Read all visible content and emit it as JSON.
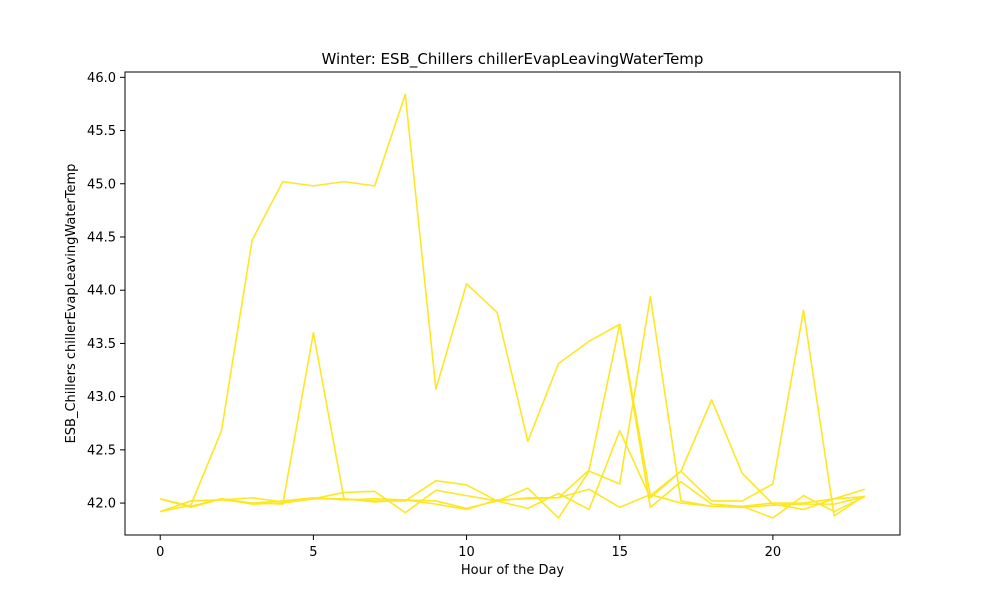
{
  "chart_data": {
    "type": "line",
    "title": "Winter: ESB_Chillers chillerEvapLeavingWaterTemp",
    "xlabel": "Hour of the Day",
    "ylabel": "ESB_Chillers chillerEvapLeavingWaterTemp",
    "xlim": [
      -1.15,
      24.15
    ],
    "ylim": [
      41.7,
      46.05
    ],
    "xticks": [
      0,
      5,
      10,
      15,
      20
    ],
    "xtick_labels": [
      "0",
      "5",
      "10",
      "15",
      "20"
    ],
    "yticks": [
      42.0,
      42.5,
      43.0,
      43.5,
      44.0,
      44.5,
      45.0,
      45.5,
      46.0
    ],
    "ytick_labels": [
      "42.0",
      "42.5",
      "43.0",
      "43.5",
      "44.0",
      "44.5",
      "45.0",
      "45.5",
      "46.0"
    ],
    "grid": false,
    "line_color": "#fde725",
    "series": [
      {
        "x": [
          0,
          1,
          2,
          3,
          4,
          5,
          6,
          7,
          8,
          9,
          10,
          11,
          12,
          13,
          14,
          15,
          16,
          17,
          18,
          19,
          20,
          21,
          22,
          23
        ],
        "values": [
          41.92,
          41.98,
          42.68,
          44.47,
          45.02,
          44.98,
          45.02,
          44.98,
          45.84,
          43.07,
          44.06,
          43.79,
          42.58,
          43.31,
          43.52,
          43.68,
          42.07,
          42.3,
          42.02,
          42.02,
          42.18,
          43.81,
          41.88,
          42.07
        ]
      },
      {
        "x": [
          0,
          1,
          2,
          3,
          4,
          5,
          6,
          7,
          8,
          9,
          10,
          11,
          12,
          13,
          14,
          15,
          16,
          17,
          18,
          19,
          20,
          21,
          22,
          23
        ],
        "values": [
          42.04,
          41.96,
          42.04,
          42.0,
          41.99,
          43.6,
          42.04,
          42.02,
          42.02,
          42.21,
          42.17,
          42.02,
          42.05,
          42.05,
          42.31,
          43.68,
          41.96,
          42.2,
          41.99,
          41.97,
          41.86,
          42.07,
          41.92,
          42.06
        ]
      },
      {
        "x": [
          1,
          2,
          3,
          4,
          5,
          6,
          7,
          8,
          9,
          10,
          11,
          12,
          13,
          14,
          15,
          16,
          17,
          18,
          19,
          20,
          21,
          22,
          23
        ],
        "values": [
          42.02,
          42.03,
          42.05,
          42.01,
          42.04,
          42.04,
          42.01,
          42.03,
          42.02,
          41.95,
          42.02,
          42.14,
          41.86,
          42.3,
          42.18,
          43.94,
          42.02,
          41.97,
          41.97,
          42.0,
          42.0,
          42.04,
          42.06
        ]
      },
      {
        "x": [
          0,
          1,
          2,
          3,
          4,
          5,
          6,
          7,
          8,
          9,
          10,
          11,
          12,
          13,
          14,
          15,
          16,
          17,
          18,
          19,
          20,
          21,
          22,
          23
        ],
        "values": [
          42.04,
          41.97,
          42.04,
          41.99,
          42.0,
          42.04,
          42.1,
          42.11,
          41.91,
          42.12,
          42.07,
          42.02,
          41.95,
          42.09,
          41.94,
          42.68,
          42.05,
          42.3,
          42.97,
          42.28,
          41.99,
          41.94,
          42.04,
          42.13
        ]
      },
      {
        "x": [
          0,
          1,
          2,
          3,
          4,
          5,
          6,
          7,
          8,
          9,
          10,
          11,
          12,
          13,
          14,
          15,
          16,
          17,
          18,
          19,
          20,
          21,
          22,
          23
        ],
        "values": [
          41.92,
          42.02,
          42.03,
          42.0,
          42.02,
          42.05,
          42.03,
          42.04,
          42.03,
          41.99,
          41.94,
          42.03,
          42.04,
          42.05,
          42.13,
          41.96,
          42.08,
          42.0,
          41.97,
          41.96,
          41.98,
          41.99,
          41.99,
          42.06
        ]
      }
    ]
  }
}
